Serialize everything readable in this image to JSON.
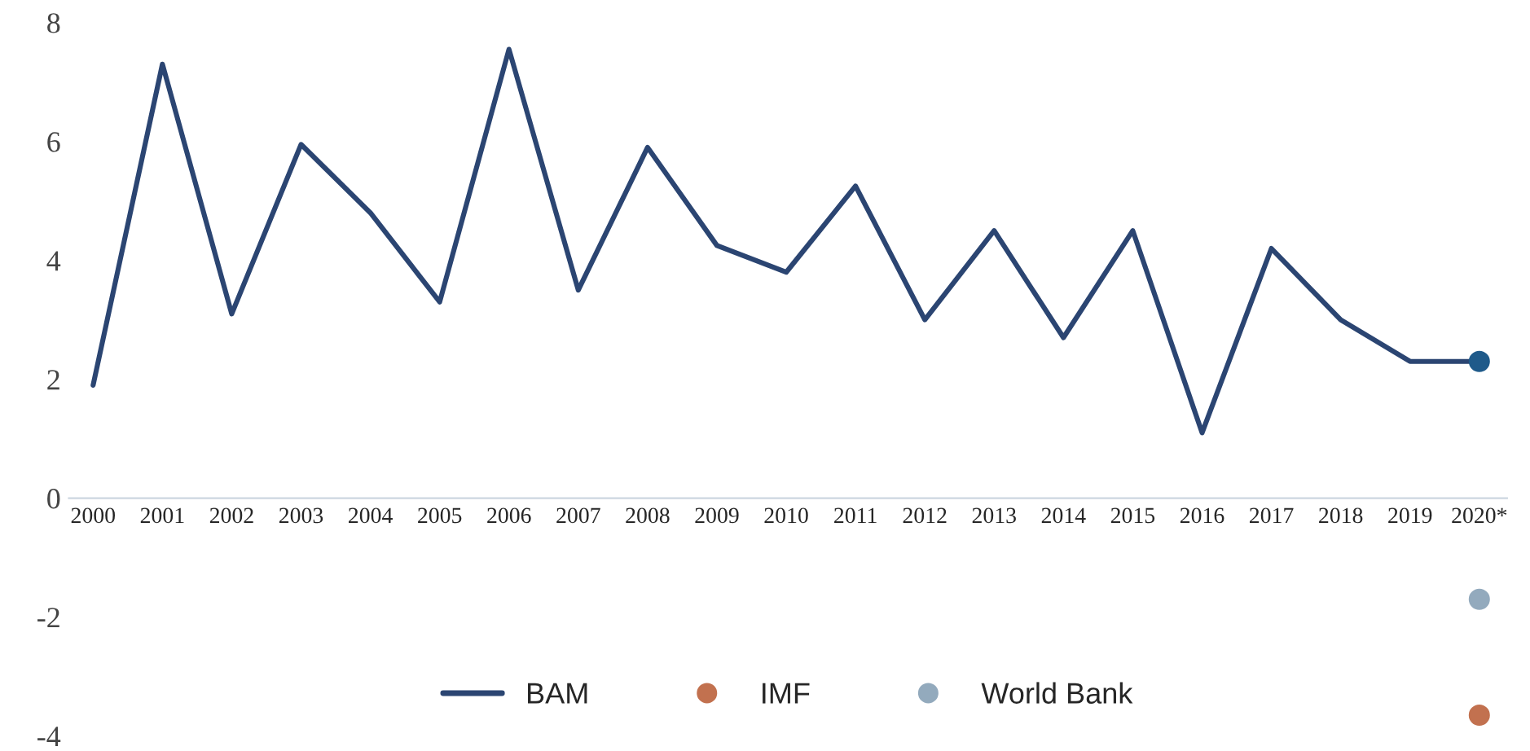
{
  "chart_data": {
    "type": "line",
    "categories": [
      "2000",
      "2001",
      "2002",
      "2003",
      "2004",
      "2005",
      "2006",
      "2007",
      "2008",
      "2009",
      "2010",
      "2011",
      "2012",
      "2013",
      "2014",
      "2015",
      "2016",
      "2017",
      "2018",
      "2019",
      "2020*"
    ],
    "series": [
      {
        "name": "BAM",
        "color": "#2b4572",
        "values": [
          1.9,
          7.3,
          3.1,
          5.95,
          4.8,
          3.3,
          7.55,
          3.5,
          5.9,
          4.25,
          3.8,
          5.25,
          3.0,
          4.5,
          2.7,
          4.5,
          1.1,
          4.2,
          3.0,
          2.3,
          2.3
        ]
      },
      {
        "type": "scatter",
        "marker": "circle",
        "color": "#1f5a8a",
        "x": [
          "2020*"
        ],
        "values": [
          2.3
        ]
      },
      {
        "name": "IMF",
        "type": "scatter",
        "marker": "circle",
        "color": "#c2714f",
        "x": [
          "2020*"
        ],
        "values": [
          -3.65
        ]
      },
      {
        "name": "World Bank",
        "type": "scatter",
        "marker": "circle",
        "color": "#93aabd",
        "x": [
          "2020*"
        ],
        "values": [
          -1.7
        ]
      }
    ],
    "ylim": [
      -4,
      8
    ],
    "yticks": [
      -4,
      -2,
      0,
      2,
      4,
      6,
      8
    ],
    "grid": false,
    "legend": "bottom",
    "marker": "none",
    "line_style": "solid"
  }
}
